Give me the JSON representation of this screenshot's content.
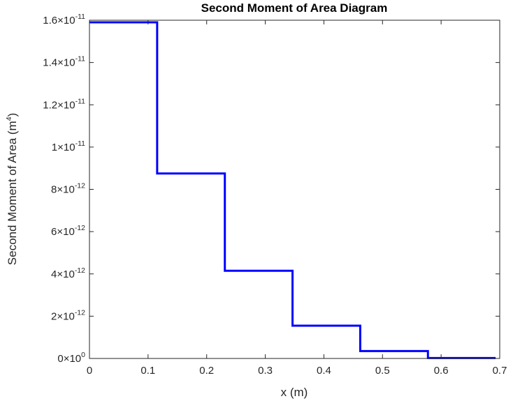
{
  "chart_data": {
    "type": "line",
    "title": "Second Moment of Area Diagram",
    "xlabel": "x (m)",
    "ylabel": {
      "text": "Second Moment of Area (m",
      "superscript": "4",
      "suffix": ")"
    },
    "xlim": [
      0,
      0.7
    ],
    "ylim": [
      0,
      1.6e-11
    ],
    "grid": false,
    "box": true,
    "x_ticks": [
      {
        "value": 0,
        "label": "0"
      },
      {
        "value": 0.1,
        "label": "0.1"
      },
      {
        "value": 0.2,
        "label": "0.2"
      },
      {
        "value": 0.3,
        "label": "0.3"
      },
      {
        "value": 0.4,
        "label": "0.4"
      },
      {
        "value": 0.5,
        "label": "0.5"
      },
      {
        "value": 0.6,
        "label": "0.6"
      },
      {
        "value": 0.7,
        "label": "0.7"
      }
    ],
    "y_ticks": [
      {
        "value": 0,
        "mantissa": "0",
        "exponent": "0"
      },
      {
        "value": 2e-12,
        "mantissa": "2",
        "exponent": "-12"
      },
      {
        "value": 4e-12,
        "mantissa": "4",
        "exponent": "-12"
      },
      {
        "value": 6e-12,
        "mantissa": "6",
        "exponent": "-12"
      },
      {
        "value": 8e-12,
        "mantissa": "8",
        "exponent": "-12"
      },
      {
        "value": 1e-11,
        "mantissa": "1",
        "exponent": "-11"
      },
      {
        "value": 1.2e-11,
        "mantissa": "1.2",
        "exponent": "-11"
      },
      {
        "value": 1.4e-11,
        "mantissa": "1.4",
        "exponent": "-11"
      },
      {
        "value": 1.6e-11,
        "mantissa": "1.6",
        "exponent": "-11"
      }
    ],
    "tick_multiplier": "×10",
    "series": [
      {
        "color": "#0000ff",
        "x": [
          0,
          0.1155,
          0.1155,
          0.231,
          0.231,
          0.3465,
          0.3465,
          0.462,
          0.462,
          0.5775,
          0.5775,
          0.693
        ],
        "y": [
          1.59e-11,
          1.59e-11,
          8.75e-12,
          8.75e-12,
          4.15e-12,
          4.15e-12,
          1.55e-12,
          1.55e-12,
          3.5e-13,
          3.5e-13,
          2e-14,
          2e-14
        ]
      }
    ]
  }
}
